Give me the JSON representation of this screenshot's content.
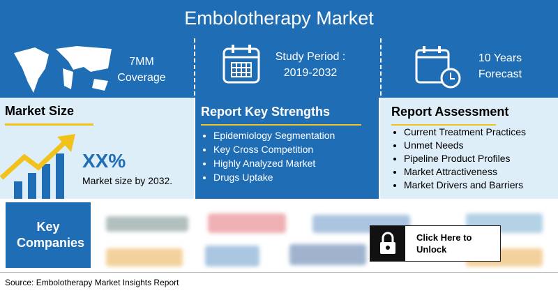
{
  "header": {
    "title": "Embolotherapy Market"
  },
  "highlights": [
    {
      "lines": [
        "7MM",
        "Coverage"
      ]
    },
    {
      "lines": [
        "Study Period :",
        "2019-2032"
      ]
    },
    {
      "lines": [
        "10 Years",
        "Forecast"
      ]
    }
  ],
  "market_size": {
    "heading": "Market Size",
    "value": "XX%",
    "caption": "Market size by 2032."
  },
  "key_strengths": {
    "heading": "Report Key Strengths",
    "items": [
      "Epidemiology Segmentation",
      "Key Cross Competition",
      "Highly Analyzed Market",
      "Drugs Uptake"
    ]
  },
  "assessment": {
    "heading": "Report Assessment",
    "items": [
      "Current Treatment Practices",
      "Unmet Needs",
      "Pipeline Product Profiles",
      "Market Attractiveness",
      "Market Drivers and Barriers"
    ]
  },
  "companies": {
    "heading": "Key Companies",
    "unlock": "Click Here to Unlock"
  },
  "footer": {
    "source": "Source: Embolotherapy Market Insights Report"
  }
}
